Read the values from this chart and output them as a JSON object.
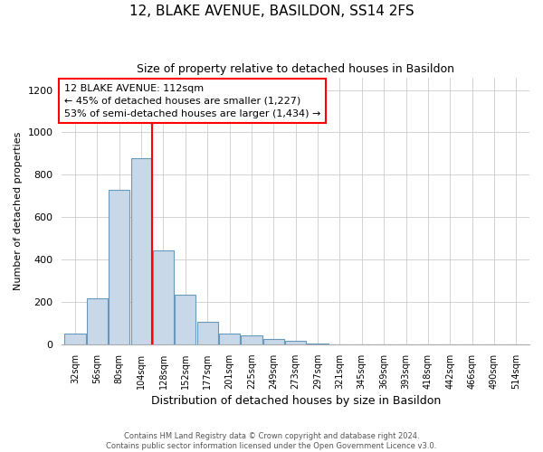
{
  "title": "12, BLAKE AVENUE, BASILDON, SS14 2FS",
  "subtitle": "Size of property relative to detached houses in Basildon",
  "xlabel": "Distribution of detached houses by size in Basildon",
  "ylabel": "Number of detached properties",
  "bin_labels": [
    "32sqm",
    "56sqm",
    "80sqm",
    "104sqm",
    "128sqm",
    "152sqm",
    "177sqm",
    "201sqm",
    "225sqm",
    "249sqm",
    "273sqm",
    "297sqm",
    "321sqm",
    "345sqm",
    "369sqm",
    "393sqm",
    "418sqm",
    "442sqm",
    "466sqm",
    "490sqm",
    "514sqm"
  ],
  "bar_values": [
    50,
    215,
    730,
    880,
    445,
    235,
    105,
    50,
    40,
    25,
    15,
    5,
    0,
    0,
    0,
    0,
    0,
    0,
    0,
    0,
    0
  ],
  "bar_color": "#c8d8e8",
  "bar_edge_color": "#6699bb",
  "vline_x": 3.5,
  "vline_color": "red",
  "annotation_line1": "12 BLAKE AVENUE: 112sqm",
  "annotation_line2": "← 45% of detached houses are smaller (1,227)",
  "annotation_line3": "53% of semi-detached houses are larger (1,434) →",
  "annotation_box_color": "white",
  "annotation_box_edge_color": "red",
  "ylim": [
    0,
    1260
  ],
  "yticks": [
    0,
    200,
    400,
    600,
    800,
    1000,
    1200
  ],
  "footer_line1": "Contains HM Land Registry data © Crown copyright and database right 2024.",
  "footer_line2": "Contains public sector information licensed under the Open Government Licence v3.0.",
  "bg_color": "white",
  "grid_color": "#cccccc"
}
